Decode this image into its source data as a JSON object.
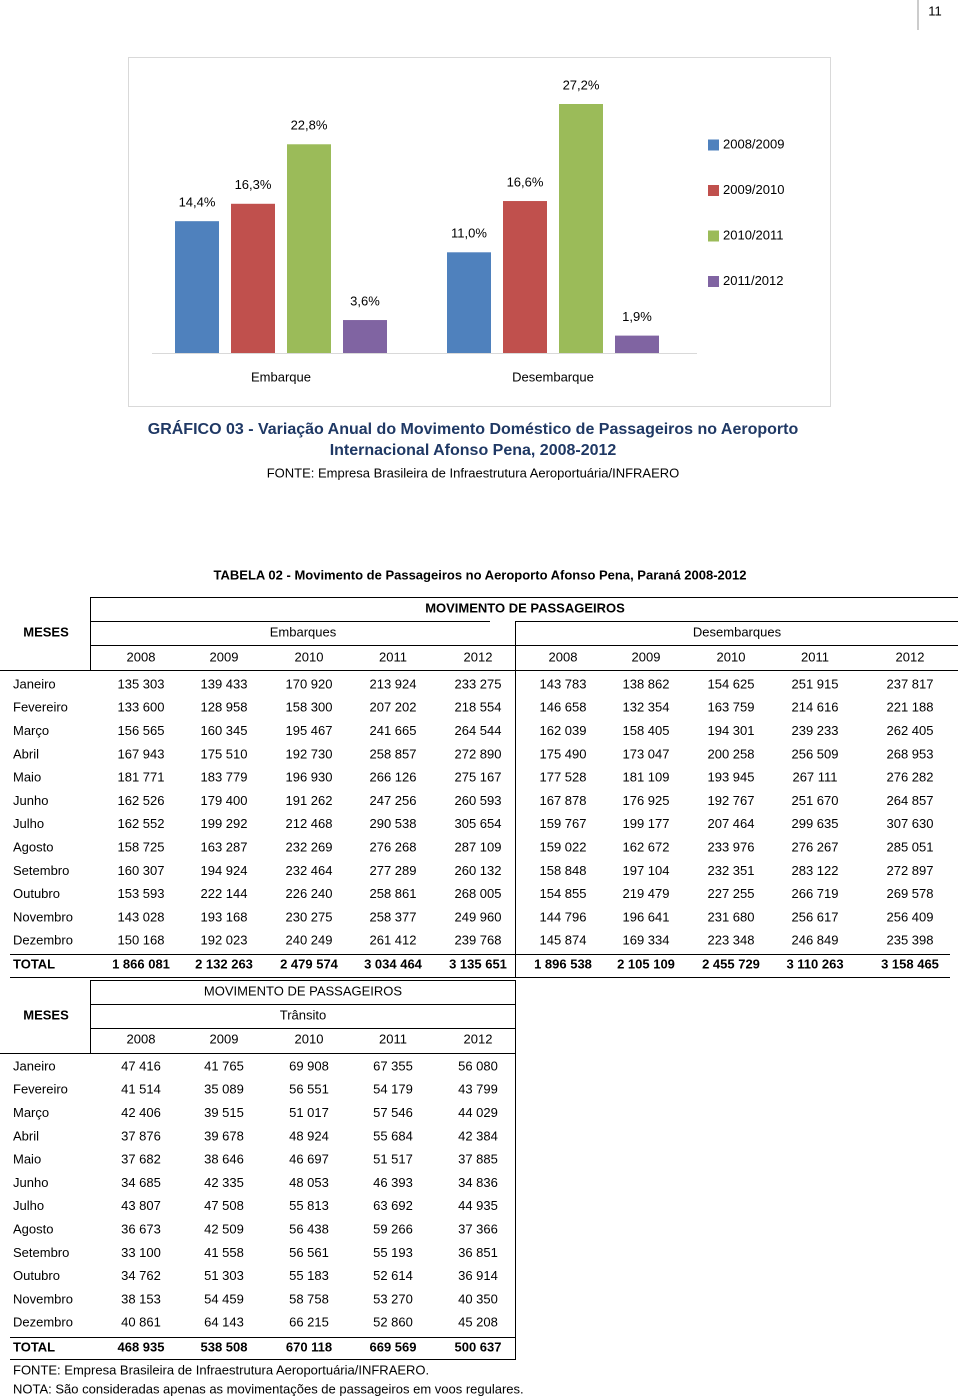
{
  "page_number": "11",
  "chart_data": {
    "type": "bar",
    "title": "GRÁFICO 03 - Variação Anual do Movimento Doméstico de Passageiros no Aeroporto Internacional Afonso Pena, 2008-2012",
    "source": "FONTE: Empresa Brasileira de Infraestrutura Aeroportuária/INFRAERO",
    "categories": [
      "Embarque",
      "Desembarque"
    ],
    "series": [
      {
        "name": "2008/2009",
        "color": "#4f81bd",
        "values": [
          14.4,
          11.0
        ],
        "value_labels": [
          "14,4%",
          "11,0%"
        ]
      },
      {
        "name": "2009/2010",
        "color": "#c0504d",
        "values": [
          16.3,
          16.6
        ],
        "value_labels": [
          "16,3%",
          "16,6%"
        ]
      },
      {
        "name": "2010/2011",
        "color": "#9bbb59",
        "values": [
          22.8,
          27.2
        ],
        "value_labels": [
          "22,8%",
          "27,2%"
        ]
      },
      {
        "name": "2011/2012",
        "color": "#8064a2",
        "values": [
          3.6,
          1.9
        ],
        "value_labels": [
          "3,6%",
          "1,9%"
        ]
      }
    ],
    "legend": "right"
  },
  "table1": {
    "title": "TABELA 02 - Movimento de Passageiros no Aeroporto Afonso Pena, Paraná 2008-2012",
    "row_header": "MESES",
    "group_header": "MOVIMENTO DE PASSAGEIROS",
    "subgroups": [
      "Embarques",
      "Desembarques"
    ],
    "years": [
      "2008",
      "2009",
      "2010",
      "2011",
      "2012",
      "2008",
      "2009",
      "2010",
      "2011",
      "2012"
    ],
    "rows": [
      [
        "Janeiro",
        "135 303",
        "139 433",
        "170 920",
        "213 924",
        "233 275",
        "143 783",
        "138 862",
        "154 625",
        "251 915",
        "237 817"
      ],
      [
        "Fevereiro",
        "133 600",
        "128 958",
        "158 300",
        "207 202",
        "218 554",
        "146 658",
        "132 354",
        "163 759",
        "214 616",
        "221 188"
      ],
      [
        "Março",
        "156 565",
        "160 345",
        "195 467",
        "241 665",
        "264 544",
        "162 039",
        "158 405",
        "194 301",
        "239 233",
        "262 405"
      ],
      [
        "Abril",
        "167 943",
        "175 510",
        "192 730",
        "258 857",
        "272 890",
        "175 490",
        "173 047",
        "200 258",
        "256 509",
        "268 953"
      ],
      [
        "Maio",
        "181 771",
        "183 779",
        "196 930",
        "266 126",
        "275 167",
        "177 528",
        "181 109",
        "193 945",
        "267 111",
        "276 282"
      ],
      [
        "Junho",
        "162 526",
        "179 400",
        "191 262",
        "247 256",
        "260 593",
        "167 878",
        "176 925",
        "192 767",
        "251 670",
        "264 857"
      ],
      [
        "Julho",
        "162 552",
        "199 292",
        "212 468",
        "290 538",
        "305 654",
        "159 767",
        "199 177",
        "207 464",
        "299 635",
        "307 630"
      ],
      [
        "Agosto",
        "158 725",
        "163 287",
        "232 269",
        "276 268",
        "287 109",
        "159 022",
        "162 672",
        "233 976",
        "276 267",
        "285 051"
      ],
      [
        "Setembro",
        "160 307",
        "194 924",
        "232 464",
        "277 289",
        "260 132",
        "158 848",
        "197 104",
        "232 351",
        "283 122",
        "272 897"
      ],
      [
        "Outubro",
        "153 593",
        "222 144",
        "226 240",
        "258 861",
        "268 005",
        "154 855",
        "219 479",
        "227 255",
        "266 719",
        "269 578"
      ],
      [
        "Novembro",
        "143 028",
        "193 168",
        "230 275",
        "258 377",
        "249 960",
        "144 796",
        "196 641",
        "231 680",
        "256 617",
        "256 409"
      ],
      [
        "Dezembro",
        "150 168",
        "192 023",
        "240 249",
        "261 412",
        "239 768",
        "145 874",
        "169 334",
        "223 348",
        "246 849",
        "235 398"
      ],
      [
        "TOTAL",
        "1 866 081",
        "2 132 263",
        "2 479 574",
        "3 034 464",
        "3 135 651",
        "1 896 538",
        "2 105 109",
        "2 455 729",
        "3 110 263",
        "3 158 465"
      ]
    ]
  },
  "table2": {
    "row_header": "MESES",
    "group_header": "MOVIMENTO DE PASSAGEIROS",
    "subgroup": "Trânsito",
    "years": [
      "2008",
      "2009",
      "2010",
      "2011",
      "2012"
    ],
    "rows": [
      [
        "Janeiro",
        "47 416",
        "41 765",
        "69 908",
        "67 355",
        "56 080"
      ],
      [
        "Fevereiro",
        "41 514",
        "35 089",
        "56 551",
        "54 179",
        "43 799"
      ],
      [
        "Março",
        "42 406",
        "39 515",
        "51 017",
        "57 546",
        "44 029"
      ],
      [
        "Abril",
        "37 876",
        "39 678",
        "48 924",
        "55 684",
        "42 384"
      ],
      [
        "Maio",
        "37 682",
        "38 646",
        "46 697",
        "51 517",
        "37 885"
      ],
      [
        "Junho",
        "34 685",
        "42 335",
        "48 053",
        "46 393",
        "34 836"
      ],
      [
        "Julho",
        "43 807",
        "47 508",
        "55 813",
        "63 692",
        "44 935"
      ],
      [
        "Agosto",
        "36 673",
        "42 509",
        "56 438",
        "59 266",
        "37 366"
      ],
      [
        "Setembro",
        "33 100",
        "41 558",
        "56 561",
        "55 193",
        "36 851"
      ],
      [
        "Outubro",
        "34 762",
        "51 303",
        "55 183",
        "52 614",
        "36 914"
      ],
      [
        "Novembro",
        "38 153",
        "54 459",
        "58 758",
        "53 270",
        "40 350"
      ],
      [
        "Dezembro",
        "40 861",
        "64 143",
        "66 215",
        "52 860",
        "45 208"
      ],
      [
        "TOTAL",
        "468 935",
        "538 508",
        "670 118",
        "669 569",
        "500 637"
      ]
    ]
  },
  "notes": [
    "FONTE: Empresa Brasileira de Infraestrutura Aeroportuária/INFRAERO.",
    "NOTA: São consideradas apenas as movimentações de passageiros em voos regulares."
  ]
}
